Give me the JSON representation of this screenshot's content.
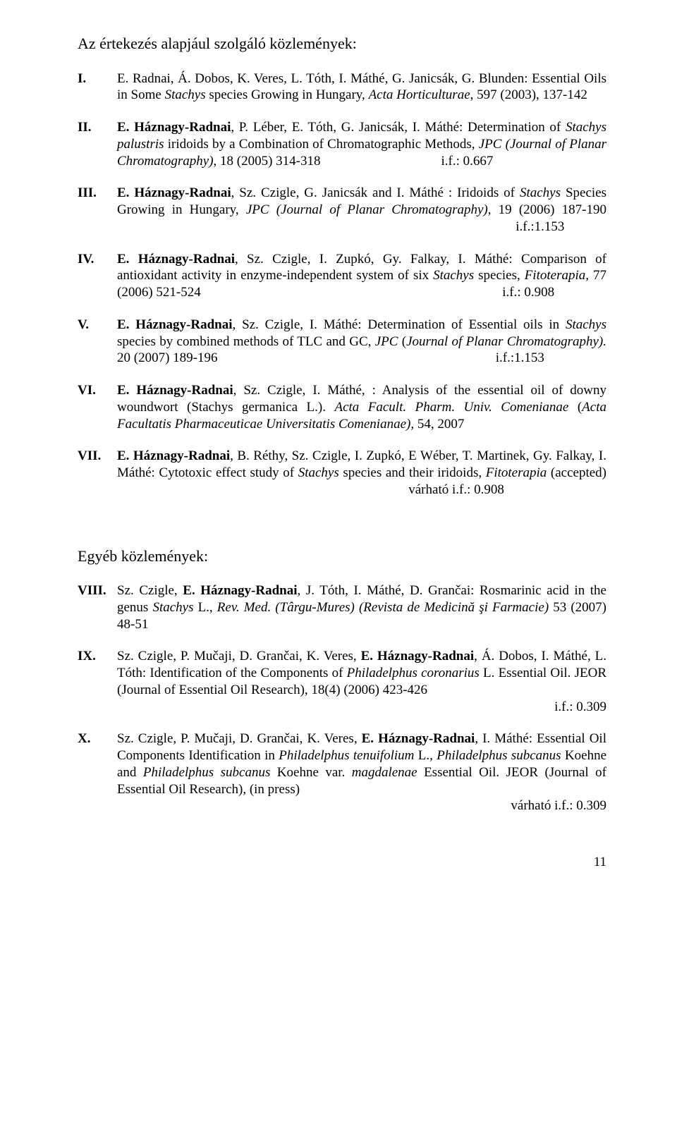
{
  "title1": "Az értekezés alapjául szolgáló közlemények:",
  "refs1": [
    {
      "num": "I.",
      "html": "E. Radnai, Á. Dobos, K. Veres, L. Tóth, I. Máthé, G. Janicsák, G. Blunden: Essential Oils in Some <span class='italic'>Stachys</span> species Growing in Hungary, <span class='italic'>Acta Horticulturae</span>, 597 (2003), 137-142"
    },
    {
      "num": "II.",
      "html": "<span class='bold'>E. Háznagy-Radnai</span>, P. Léber, E. Tóth, G. Janicsák, I. Máthé: Determination of <span class='italic'>Stachys palustris</span> iridoids by a Combination of Chromatographic Methods, <span class='italic'>JPC (Journal of Planar Chromatography)</span>, 18 (2005) 314-318 &nbsp;&nbsp;&nbsp;&nbsp;&nbsp;&nbsp;&nbsp;&nbsp;&nbsp;&nbsp;&nbsp;&nbsp;&nbsp;&nbsp;&nbsp;&nbsp;&nbsp;&nbsp;&nbsp;&nbsp;&nbsp;&nbsp;&nbsp;&nbsp;&nbsp;&nbsp;&nbsp;&nbsp;&nbsp;&nbsp;&nbsp;&nbsp;&nbsp;&nbsp; i.f.: 0.667"
    },
    {
      "num": "III.",
      "html": "<span class='bold'>E. Háznagy-Radnai</span>, Sz. Czigle, G. Janicsák and I. Máthé : Iridoids of <span class='italic'>Stachys</span> Species Growing in Hungary, <span class='italic'>JPC (Journal of Planar Chromatography)</span>, 19 (2006) 187-190 &nbsp;&nbsp;&nbsp;&nbsp;&nbsp;&nbsp;&nbsp;&nbsp;&nbsp;&nbsp;&nbsp;&nbsp;&nbsp;&nbsp;&nbsp;&nbsp;&nbsp;&nbsp;&nbsp;&nbsp;&nbsp;&nbsp;&nbsp;&nbsp;&nbsp;&nbsp;&nbsp;&nbsp;&nbsp;&nbsp;&nbsp;&nbsp;&nbsp;&nbsp;&nbsp;&nbsp;&nbsp;&nbsp;&nbsp;&nbsp;&nbsp;&nbsp;&nbsp;&nbsp;&nbsp;&nbsp;&nbsp;&nbsp;&nbsp;&nbsp;&nbsp;&nbsp;&nbsp;&nbsp;&nbsp;&nbsp;&nbsp;&nbsp;&nbsp;&nbsp;&nbsp;&nbsp;&nbsp;&nbsp;&nbsp;&nbsp;&nbsp;&nbsp;&nbsp;&nbsp;&nbsp;&nbsp;&nbsp;&nbsp;&nbsp;&nbsp;&nbsp;&nbsp;&nbsp;&nbsp;&nbsp;&nbsp;&nbsp;&nbsp;&nbsp;&nbsp;&nbsp;&nbsp;&nbsp;&nbsp;&nbsp;&nbsp;&nbsp;&nbsp;&nbsp;&nbsp;&nbsp;&nbsp;&nbsp;&nbsp;&nbsp;&nbsp;&nbsp;&nbsp;&nbsp;&nbsp;&nbsp;&nbsp;&nbsp;&nbsp;&nbsp;&nbsp;&nbsp;&nbsp;&nbsp;&nbsp;&nbsp;&nbsp; i.f.:1.153"
    },
    {
      "num": "IV.",
      "html": "<span class='bold'>E. Háznagy-Radnai</span>, Sz. Czigle, I. Zupkó, Gy. Falkay, I. Máthé: Comparison of antioxidant activity in enzyme-independent system of six <span class='italic'>Stachys</span> species, <span class='italic'>Fitoterapia,</span> 77 (2006) 521-524 &nbsp;&nbsp;&nbsp;&nbsp;&nbsp;&nbsp;&nbsp;&nbsp;&nbsp;&nbsp;&nbsp;&nbsp;&nbsp;&nbsp;&nbsp;&nbsp;&nbsp;&nbsp;&nbsp;&nbsp;&nbsp;&nbsp;&nbsp;&nbsp;&nbsp;&nbsp;&nbsp;&nbsp;&nbsp;&nbsp;&nbsp;&nbsp;&nbsp;&nbsp;&nbsp;&nbsp;&nbsp;&nbsp;&nbsp;&nbsp;&nbsp;&nbsp;&nbsp;&nbsp;&nbsp;&nbsp;&nbsp;&nbsp;&nbsp;&nbsp;&nbsp;&nbsp;&nbsp;&nbsp;&nbsp;&nbsp;&nbsp;&nbsp;&nbsp;&nbsp;&nbsp;&nbsp;&nbsp;&nbsp;&nbsp;&nbsp;&nbsp;&nbsp;&nbsp;&nbsp;&nbsp;&nbsp;&nbsp;&nbsp;&nbsp;&nbsp;&nbsp;&nbsp;&nbsp;&nbsp;&nbsp;&nbsp;&nbsp;&nbsp;&nbsp;&nbsp;&nbsp;&nbsp; i.f.: 0.908"
    },
    {
      "num": "V.",
      "html": "<span class='bold'>E. Háznagy-Radnai</span>, Sz. Czigle, I. Máthé: Determination of Essential oils in <span class='italic'>Stachys</span> species by combined methods of TLC and GC, <span class='italic'>JPC</span> (<span class='italic'>Journal of Planar Chromatography).</span> 20 (2007) 189-196 &nbsp;&nbsp;&nbsp;&nbsp;&nbsp;&nbsp;&nbsp;&nbsp;&nbsp;&nbsp;&nbsp;&nbsp;&nbsp;&nbsp;&nbsp;&nbsp;&nbsp;&nbsp;&nbsp;&nbsp;&nbsp;&nbsp;&nbsp;&nbsp;&nbsp;&nbsp;&nbsp;&nbsp;&nbsp;&nbsp;&nbsp;&nbsp;&nbsp;&nbsp;&nbsp;&nbsp;&nbsp;&nbsp;&nbsp;&nbsp;&nbsp;&nbsp;&nbsp;&nbsp;&nbsp;&nbsp;&nbsp;&nbsp;&nbsp;&nbsp;&nbsp;&nbsp;&nbsp;&nbsp;&nbsp;&nbsp;&nbsp;&nbsp;&nbsp;&nbsp;&nbsp;&nbsp;&nbsp;&nbsp;&nbsp;&nbsp;&nbsp;&nbsp;&nbsp;&nbsp;&nbsp;&nbsp;&nbsp;&nbsp;&nbsp;&nbsp;&nbsp;&nbsp;&nbsp;&nbsp;&nbsp; i.f.:1.153"
    },
    {
      "num": "VI.",
      "html": "<span class='bold'>E. Háznagy-Radnai</span>, Sz. Czigle, I. Máthé, : Analysis of the essential oil of downy woundwort (Stachys germanica L.). <span class='italic'>Acta Facult. Pharm. Univ. Comenianae</span> (<span class='italic'>Acta Facultatis Pharmaceuticae Universitatis Comenianae),</span> 54, 2007"
    },
    {
      "num": "VII.",
      "html": "<span class='bold'>E. Háznagy-Radnai</span>, B. Réthy, Sz. Czigle, I. Zupkó, E Wéber, T. Martinek, Gy. Falkay, I. Máthé: Cytotoxic effect study of <span class='italic'>Stachys</span> species and their iridoids, <span class='italic'>Fitoterapia</span> (accepted) &nbsp;&nbsp;&nbsp;&nbsp;&nbsp;&nbsp;&nbsp;&nbsp;&nbsp;&nbsp;&nbsp;&nbsp;&nbsp;&nbsp;&nbsp;&nbsp;&nbsp;&nbsp;&nbsp;&nbsp;&nbsp;&nbsp;&nbsp;&nbsp;&nbsp;&nbsp;&nbsp;&nbsp;&nbsp;&nbsp;&nbsp;&nbsp;&nbsp;&nbsp;&nbsp;&nbsp;&nbsp;&nbsp;&nbsp;&nbsp;&nbsp;&nbsp;&nbsp;&nbsp;&nbsp;&nbsp;&nbsp;&nbsp;&nbsp;&nbsp;&nbsp;&nbsp;&nbsp;&nbsp;&nbsp;&nbsp;&nbsp;&nbsp;&nbsp;&nbsp;&nbsp;&nbsp;&nbsp;&nbsp;&nbsp;&nbsp;&nbsp;&nbsp;&nbsp;&nbsp;&nbsp;&nbsp;&nbsp;&nbsp;&nbsp;&nbsp;&nbsp;&nbsp;&nbsp;&nbsp;&nbsp;&nbsp;&nbsp;&nbsp;&nbsp;&nbsp; várható i.f.: 0.908"
    }
  ],
  "title2": "Egyéb közlemények:",
  "refs2": [
    {
      "num": "VIII.",
      "html": "Sz. Czigle, <span class='bold'>E. Háznagy-Radnai</span>, J. Tóth, I. Máthé, D. Grančai: Rosmarinic acid in the genus <span class='italic'>Stachys</span> L., <span class='italic'>Rev. Med. (Târgu-Mures) (Revista de Medicină şi Farmacie)</span> 53 (2007) 48-51"
    },
    {
      "num": "IX.",
      "html": "Sz. Czigle, P. Mučaji, D. Grančai, K. Veres, <span class='bold'>E. Háznagy-Radnai</span>, Á. Dobos, I. Máthé, L. Tóth: Identification of the Components of <span class='italic'>Philadelphus coronarius</span> L. Essential Oil. JEOR (Journal of Essential Oil Research), 18(4) (2006) 423-426<span class='if-right'>i.f.: 0.309</span>"
    },
    {
      "num": "X.",
      "html": "Sz. Czigle, P. Mučaji, D. Grančai, K. Veres, <span class='bold'>E. Háznagy-Radnai</span>, I. Máthé: Essential Oil Components Identification in <span class='italic'>Philadelphus tenuifolium</span> L., <span class='italic'>Philadelphus subcanus</span> Koehne and <span class='italic'>Philadelphus subcanus</span> Koehne var. <span class='italic'>magdalenae</span> Essential Oil. JEOR (Journal of Essential Oil Research), (in press)<span class='if-right'>várható i.f.: 0.309</span>"
    }
  ],
  "pageNumber": "11"
}
